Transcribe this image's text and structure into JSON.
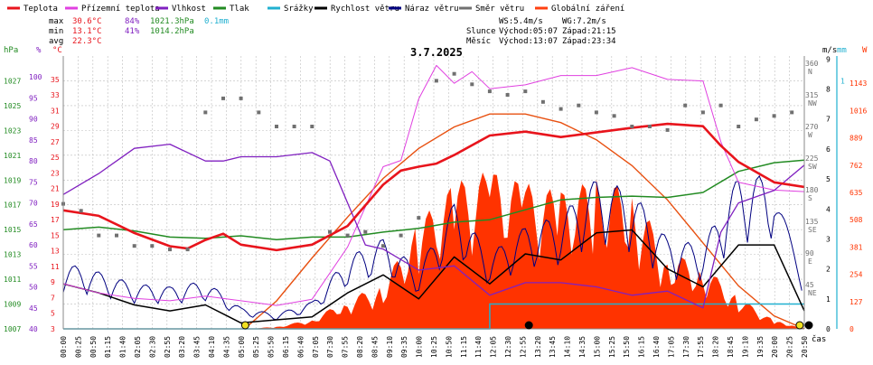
{
  "legend": [
    {
      "label": "Teplota",
      "color": "#e8141c"
    },
    {
      "label": "Přízemní teplota",
      "color": "#e040e0"
    },
    {
      "label": "Vlhkost",
      "color": "#8020c0"
    },
    {
      "label": "Tlak",
      "color": "#228b22"
    },
    {
      "label": "Srážky",
      "color": "#20b0d0"
    },
    {
      "label": "Rychlost větru",
      "color": "#000000"
    },
    {
      "label": "Náraz větru",
      "color": "#000080"
    },
    {
      "label": "Směr větru",
      "color": "#707070"
    },
    {
      "label": "Globální záření",
      "color": "#ff4010"
    }
  ],
  "stats": {
    "max_label": "max",
    "max_temp": "30.6°C",
    "max_hum": "84%",
    "max_press": "1021.3hPa",
    "max_rain": "0.1mm",
    "min_label": "min",
    "min_temp": "13.1°C",
    "min_hum": "41%",
    "min_press": "1014.2hPa",
    "avg_label": "avg",
    "avg_temp": "22.3°C"
  },
  "wind_info": {
    "ws": "WS:5.4m/s",
    "wg": "WG:7.2m/s",
    "sun_label": "Slunce",
    "sun_rise": "Východ:05:07",
    "sun_set": "Západ:21:15",
    "moon_label": "Měsíc",
    "moon_rise": "Východ:13:07",
    "moon_set": "Západ:23:34"
  },
  "date": "3.7.2025",
  "colors": {
    "temp": "#e8141c",
    "dew": "#e040e0",
    "hum": "#8020c0",
    "press": "#228b22",
    "rain": "#20b0d0",
    "wind": "#000000",
    "gust": "#000080",
    "dir": "#707070",
    "solar_fill": "#ff3300",
    "solar_theory": "#e85010",
    "grid": "#bdbdbd",
    "bg": "#ffffff"
  },
  "chart_data": {
    "type": "line",
    "x_ticks": [
      "00:00",
      "00:25",
      "00:50",
      "01:15",
      "01:40",
      "02:05",
      "02:30",
      "02:55",
      "03:20",
      "03:45",
      "04:10",
      "04:35",
      "05:00",
      "05:25",
      "05:50",
      "06:15",
      "06:40",
      "07:05",
      "07:30",
      "07:55",
      "08:20",
      "08:45",
      "09:10",
      "09:35",
      "10:00",
      "10:25",
      "10:50",
      "11:15",
      "11:40",
      "12:05",
      "12:30",
      "12:55",
      "13:20",
      "13:45",
      "14:10",
      "14:35",
      "15:00",
      "15:25",
      "15:50",
      "16:15",
      "16:40",
      "17:05",
      "17:30",
      "17:55",
      "18:20",
      "18:45",
      "19:10",
      "19:35",
      "20:00",
      "20:25",
      "20:50"
    ],
    "x_label": "čas",
    "axes_left": {
      "hpa": {
        "label": "hPa",
        "range": [
          1007,
          1029
        ],
        "ticks": [
          "1027",
          "1025",
          "1023",
          "1021",
          "1019",
          "1017",
          "1015",
          "1013",
          "1011",
          "1009",
          "1007"
        ]
      },
      "pct": {
        "label": "%",
        "range": [
          40,
          105
        ],
        "ticks": [
          "100",
          "95",
          "90",
          "85",
          "80",
          "75",
          "70",
          "65",
          "60",
          "55",
          "50",
          "45",
          "40"
        ]
      },
      "degc": {
        "label": "°C",
        "range": [
          3,
          38
        ],
        "ticks": [
          "35",
          "33",
          "31",
          "29",
          "27",
          "25",
          "23",
          "21",
          "19",
          "17",
          "15",
          "13",
          "11",
          "9",
          "7",
          "5",
          "3"
        ]
      }
    },
    "axes_right": {
      "dir": {
        "ticks": [
          "360 N",
          "315 NW",
          "270 W",
          "225 SW",
          "180 S",
          "135 SE",
          "90 E",
          "45 NE"
        ]
      },
      "ms": {
        "label": "m/s",
        "range": [
          0,
          9.1
        ],
        "ticks": [
          "9",
          "8",
          "7",
          "6",
          "5",
          "4",
          "3",
          "2",
          "1",
          "0"
        ]
      },
      "mm": {
        "label": "mm",
        "range": [
          0,
          1.1
        ],
        "ticks": [
          "1"
        ]
      },
      "w": {
        "label": "W",
        "range": [
          0,
          1270
        ],
        "ticks": [
          "1143",
          "1016",
          "889",
          "762",
          "635",
          "508",
          "381",
          "254",
          "127",
          "0"
        ]
      }
    },
    "series": [
      {
        "name": "Teplota",
        "unit": "°C",
        "x": [
          0,
          1,
          2,
          3,
          3.5,
          4,
          4.5,
          5,
          6,
          7,
          8,
          9,
          9.5,
          10,
          10.5,
          11,
          12,
          13,
          14,
          15,
          16,
          17,
          18,
          18.5,
          19,
          20,
          20.85
        ],
        "y": [
          18.2,
          17.5,
          15.3,
          13.6,
          13.3,
          14.4,
          15.2,
          13.8,
          13.1,
          13.8,
          16.2,
          21.5,
          23.3,
          23.8,
          24.2,
          25.3,
          27.8,
          28.3,
          27.6,
          28.2,
          28.8,
          29.3,
          29.0,
          26.5,
          24.4,
          21.8,
          21.2
        ]
      },
      {
        "name": "Přízemní teplota",
        "unit": "°C",
        "x": [
          0,
          1,
          2,
          3,
          4,
          5,
          6,
          7,
          8,
          9,
          9.5,
          10,
          10.5,
          11,
          11.5,
          12,
          13,
          14,
          15,
          16,
          17,
          18,
          18.5,
          19,
          20,
          20.85
        ],
        "y": [
          8.8,
          7.6,
          6.9,
          6.6,
          7.2,
          6.6,
          6.0,
          6.8,
          13.5,
          23.8,
          24.6,
          32.5,
          36.8,
          34.5,
          36.0,
          33.8,
          34.3,
          35.5,
          35.5,
          36.5,
          35.0,
          34.8,
          27.0,
          21.8,
          20.8,
          20.6
        ]
      },
      {
        "name": "Vlhkost",
        "unit": "%",
        "x": [
          0,
          1,
          2,
          3,
          4,
          4.5,
          5,
          6,
          7,
          7.5,
          8,
          8.5,
          9,
          10,
          11,
          12,
          13,
          14,
          15,
          16,
          17,
          18,
          18.5,
          19,
          20,
          20.85
        ],
        "y": [
          72,
          77,
          83,
          84,
          80,
          80,
          81,
          81,
          82,
          80,
          70,
          60,
          59,
          54,
          55,
          48,
          51,
          51,
          50,
          48,
          49,
          45,
          63,
          70,
          73,
          79
        ]
      },
      {
        "name": "Tlak",
        "unit": "hPa",
        "x": [
          0,
          1,
          2,
          3,
          4,
          5,
          6,
          7,
          8,
          9,
          10,
          11,
          12,
          13,
          14,
          15,
          16,
          17,
          18,
          19,
          20,
          20.85
        ],
        "y": [
          1015.0,
          1015.2,
          1014.9,
          1014.4,
          1014.3,
          1014.5,
          1014.2,
          1014.4,
          1014.4,
          1014.8,
          1015.1,
          1015.6,
          1015.8,
          1016.6,
          1017.4,
          1017.6,
          1017.7,
          1017.6,
          1018.0,
          1019.7,
          1020.4,
          1020.6
        ]
      },
      {
        "name": "Rychlost větru",
        "unit": "m/s",
        "x": [
          0,
          1,
          2,
          3,
          4,
          5,
          6,
          7,
          8,
          9,
          10,
          11,
          12,
          13,
          14,
          15,
          16,
          17,
          18,
          19,
          20,
          20.85
        ],
        "y": [
          1.5,
          1.2,
          0.8,
          0.6,
          0.8,
          0.2,
          0.3,
          0.4,
          1.2,
          1.8,
          1.0,
          2.4,
          1.5,
          2.5,
          2.3,
          3.2,
          3.3,
          2.0,
          1.4,
          2.8,
          2.8,
          0.6
        ]
      },
      {
        "name": "Náraz větru",
        "unit": "m/s",
        "x": [
          0,
          1,
          2,
          3,
          4,
          5,
          6,
          7,
          8,
          9,
          10,
          11,
          12,
          13,
          14,
          15,
          16,
          17,
          18,
          19,
          20,
          20.85
        ],
        "y": [
          2.2,
          1.9,
          1.5,
          1.4,
          1.6,
          0.7,
          0.5,
          0.9,
          2.4,
          3.0,
          2.0,
          4.2,
          2.5,
          3.4,
          3.8,
          5.0,
          4.6,
          3.0,
          2.8,
          5.1,
          5.1,
          1.2
        ]
      },
      {
        "name": "Globální záření",
        "unit": "W",
        "x": [
          5.1,
          6,
          7,
          8,
          9,
          10,
          11,
          12,
          13,
          14,
          15,
          16,
          17,
          18,
          19,
          20,
          20.85
        ],
        "y": [
          0,
          10,
          45,
          140,
          210,
          500,
          680,
          740,
          680,
          640,
          700,
          650,
          360,
          300,
          150,
          40,
          0
        ]
      },
      {
        "name": "Teoretické záření",
        "unit": "W",
        "x": [
          5.1,
          6,
          7,
          8,
          9,
          10,
          11,
          12,
          13,
          14,
          15,
          16,
          17,
          18,
          19,
          20,
          20.85
        ],
        "y": [
          0,
          130,
          330,
          520,
          700,
          840,
          940,
          1000,
          1000,
          960,
          880,
          760,
          600,
          400,
          200,
          60,
          0
        ]
      },
      {
        "name": "Srážky",
        "unit": "mm",
        "x": [
          0,
          11.8,
          12.0,
          20.85
        ],
        "y": [
          0,
          0,
          0.1,
          0.1
        ]
      },
      {
        "name": "Směr větru",
        "unit": "°",
        "x": [
          0,
          0.5,
          1,
          1.5,
          2,
          2.5,
          3,
          3.5,
          4,
          4.5,
          5,
          5.5,
          6,
          6.5,
          7,
          7.5,
          8,
          8.5,
          9,
          9.5,
          10,
          10.5,
          11,
          11.5,
          12,
          12.5,
          13,
          13.5,
          14,
          14.5,
          15,
          15.5,
          16,
          16.5,
          17,
          17.5,
          18,
          18.5,
          19,
          19.5,
          20,
          20.5
        ],
        "y": [
          160,
          150,
          115,
          115,
          100,
          100,
          95,
          95,
          290,
          310,
          310,
          290,
          270,
          270,
          270,
          120,
          115,
          120,
          100,
          115,
          140,
          335,
          345,
          330,
          320,
          315,
          320,
          305,
          295,
          300,
          290,
          285,
          270,
          270,
          265,
          300,
          290,
          300,
          270,
          280,
          285,
          290
        ]
      }
    ]
  }
}
